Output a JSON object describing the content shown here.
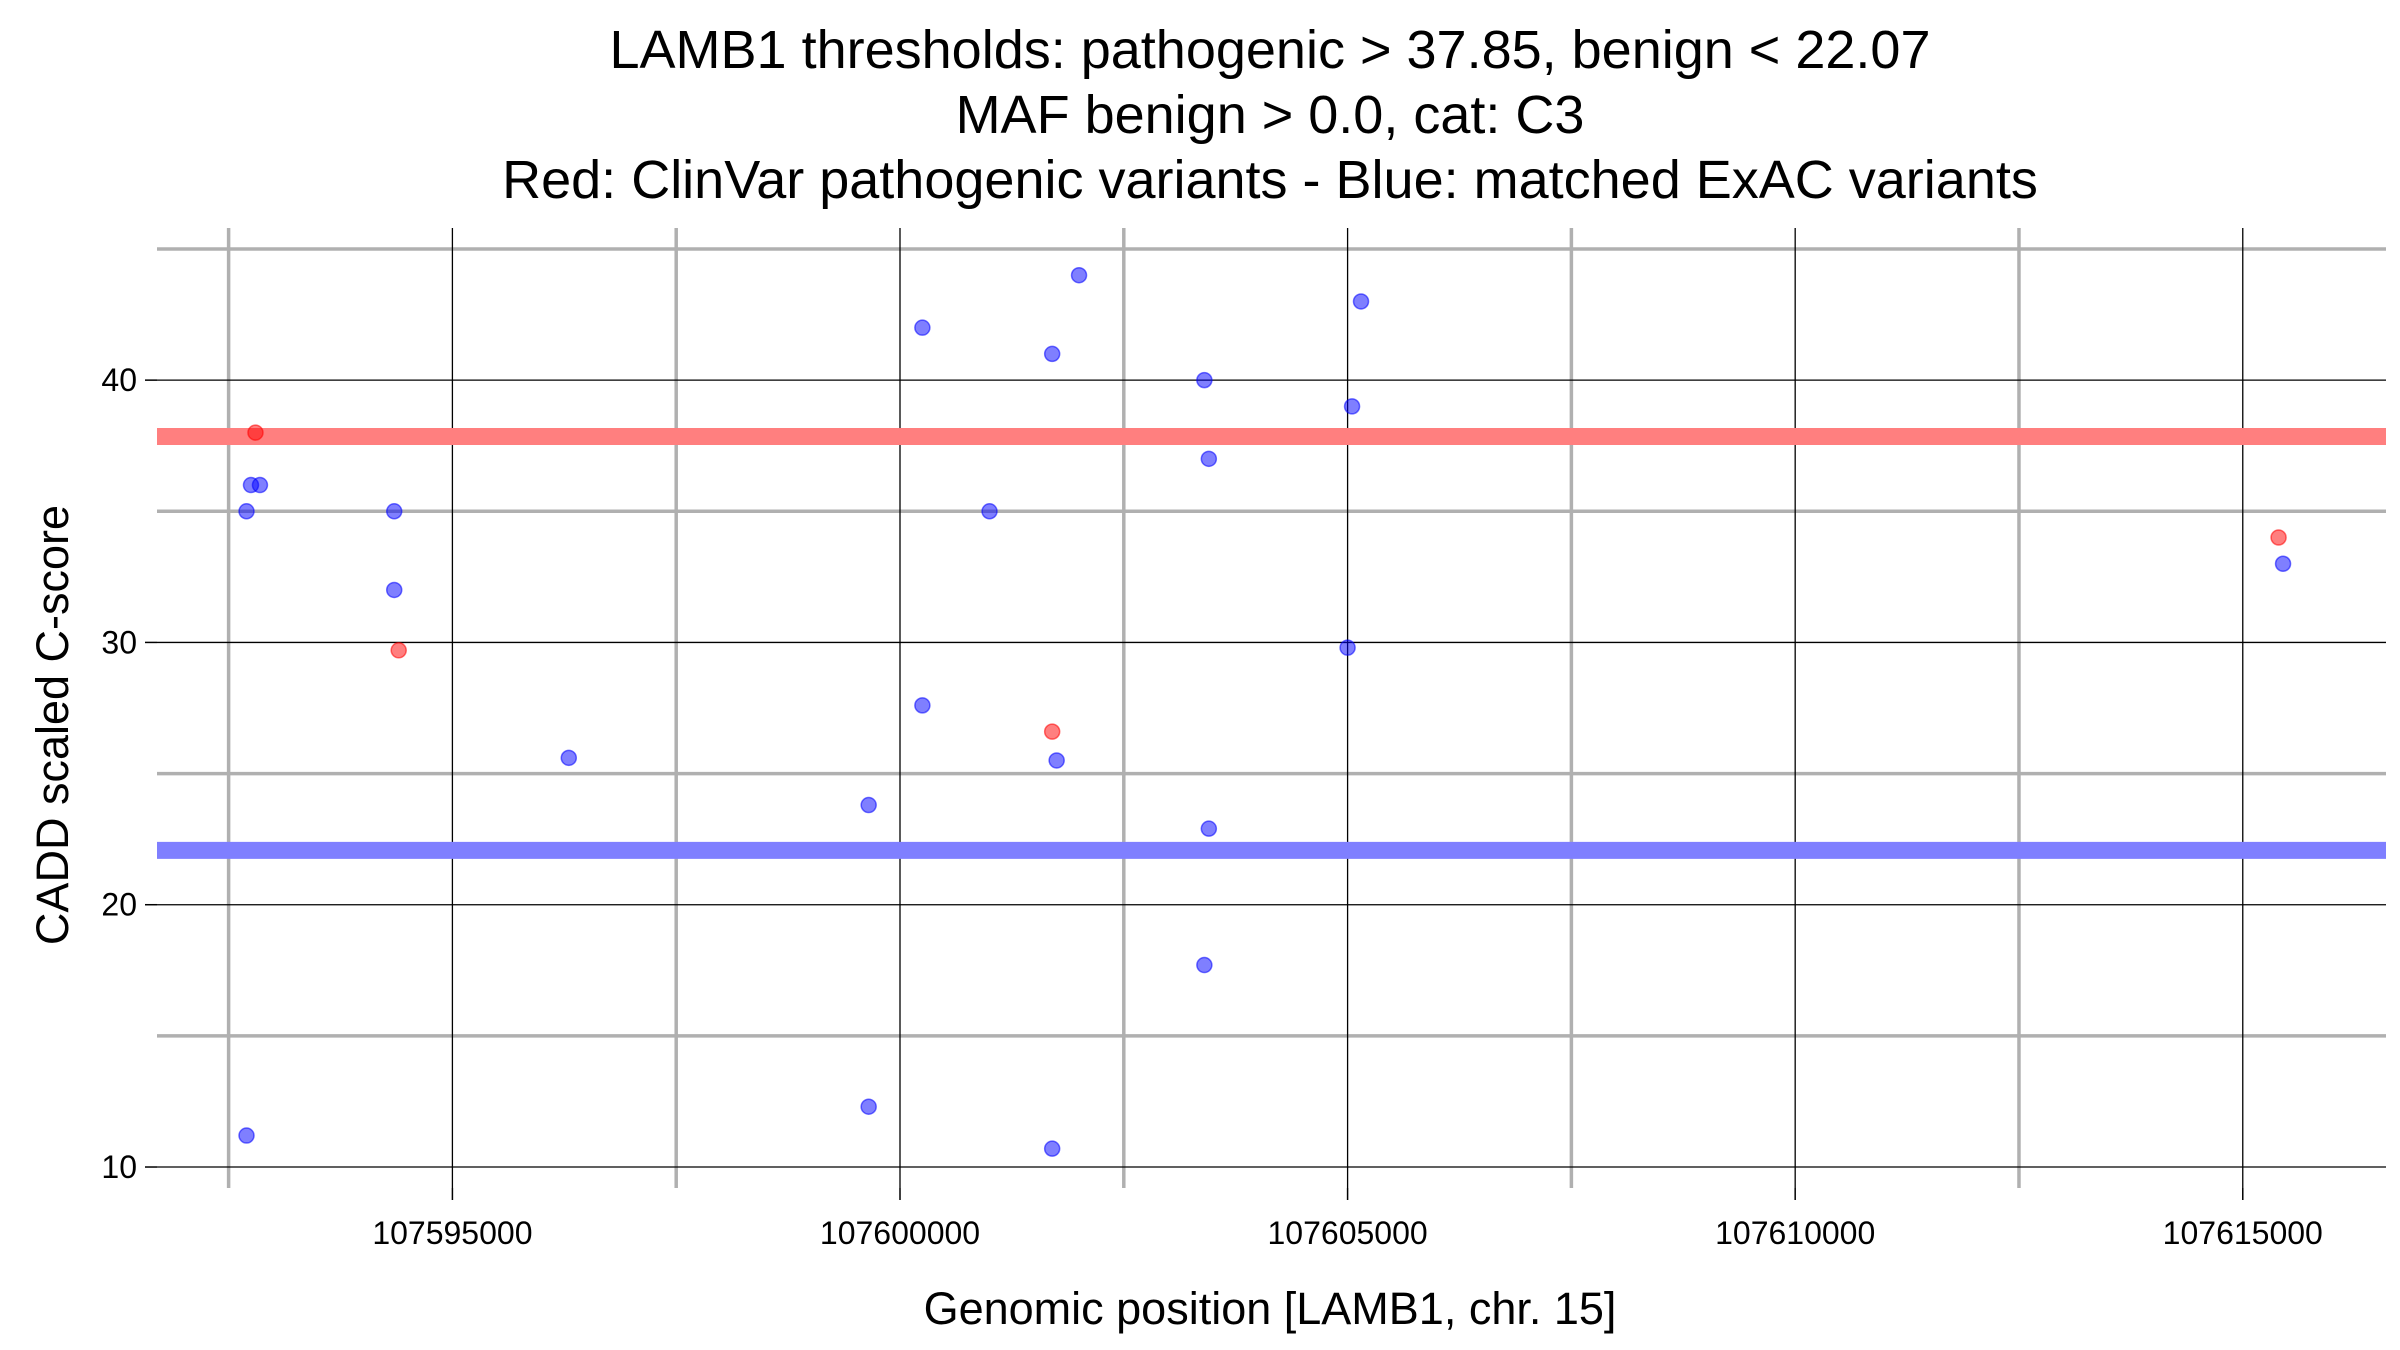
{
  "chart_data": {
    "type": "scatter",
    "title_lines": [
      "LAMB1 thresholds: pathogenic > 37.85, benign < 22.07",
      "MAF benign > 0.0, cat: C3",
      "Red: ClinVar pathogenic variants - Blue: matched ExAC variants"
    ],
    "xlabel": "Genomic position [LAMB1, chr. 15]",
    "ylabel": "CADD scaled C-score",
    "xlim": [
      107591700,
      107616600
    ],
    "ylim": [
      9.2,
      45.8
    ],
    "x_major_ticks": [
      107595000,
      107600000,
      107605000,
      107610000,
      107615000
    ],
    "x_minor_ticks": [
      107592500,
      107597500,
      107602500,
      107607500,
      107612500
    ],
    "y_major_ticks": [
      10,
      20,
      30,
      40
    ],
    "y_minor_ticks": [
      15,
      25,
      35,
      45
    ],
    "x_tick_labels": [
      "107595000",
      "107600000",
      "107605000",
      "107610000",
      "107615000"
    ],
    "y_tick_labels": [
      "10",
      "20",
      "30",
      "40"
    ],
    "thresholds": [
      {
        "name": "pathogenic",
        "value": 37.85,
        "color": "#ff7f7f"
      },
      {
        "name": "benign",
        "value": 22.07,
        "color": "#7f7fff"
      }
    ],
    "series": [
      {
        "name": "ClinVar pathogenic variants",
        "color": "#ff0000",
        "points": [
          {
            "x": 107592800,
            "y": 38.0
          },
          {
            "x": 107594400,
            "y": 29.7
          },
          {
            "x": 107601700,
            "y": 26.6
          },
          {
            "x": 107615400,
            "y": 34.0
          }
        ]
      },
      {
        "name": "matched ExAC variants",
        "color": "#0000ff",
        "points": [
          {
            "x": 107592850,
            "y": 36.0
          },
          {
            "x": 107592750,
            "y": 36.0
          },
          {
            "x": 107592700,
            "y": 35.0
          },
          {
            "x": 107592700,
            "y": 11.2
          },
          {
            "x": 107594350,
            "y": 35.0
          },
          {
            "x": 107594350,
            "y": 32.0
          },
          {
            "x": 107596300,
            "y": 25.6
          },
          {
            "x": 107599650,
            "y": 23.8
          },
          {
            "x": 107599650,
            "y": 12.3
          },
          {
            "x": 107600250,
            "y": 42.0
          },
          {
            "x": 107600250,
            "y": 27.6
          },
          {
            "x": 107601000,
            "y": 35.0
          },
          {
            "x": 107601700,
            "y": 41.0
          },
          {
            "x": 107601750,
            "y": 25.5
          },
          {
            "x": 107602000,
            "y": 44.0
          },
          {
            "x": 107601700,
            "y": 10.7
          },
          {
            "x": 107603400,
            "y": 40.0
          },
          {
            "x": 107603450,
            "y": 37.0
          },
          {
            "x": 107603450,
            "y": 22.9
          },
          {
            "x": 107603400,
            "y": 17.7
          },
          {
            "x": 107605050,
            "y": 39.0
          },
          {
            "x": 107605150,
            "y": 43.0
          },
          {
            "x": 107605000,
            "y": 29.8
          },
          {
            "x": 107615450,
            "y": 33.0
          }
        ]
      }
    ]
  }
}
